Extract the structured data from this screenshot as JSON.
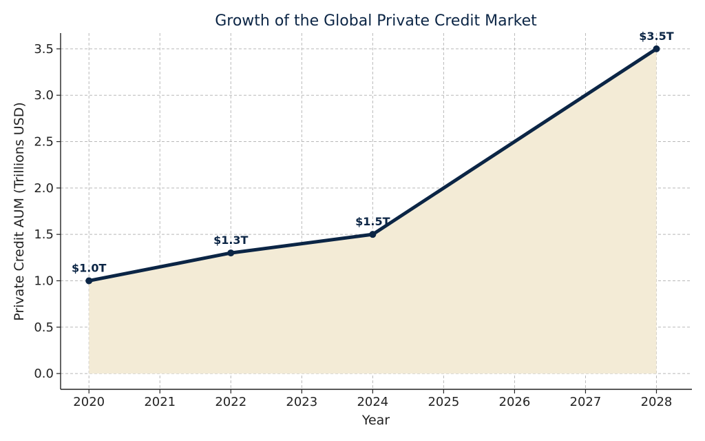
{
  "chart_data": {
    "type": "area",
    "title": "Growth of the Global Private Credit Market",
    "xlabel": "Year",
    "ylabel": "Private Credit AUM (Trillions USD)",
    "xlim": [
      2019.6,
      2028.5
    ],
    "ylim": [
      -0.17,
      3.67
    ],
    "xticks": [
      2020,
      2021,
      2022,
      2023,
      2024,
      2025,
      2026,
      2027,
      2028
    ],
    "yticks": [
      "0.0",
      "0.5",
      "1.0",
      "1.5",
      "2.0",
      "2.5",
      "3.0",
      "3.5"
    ],
    "grid": true,
    "series": [
      {
        "x": [
          2020,
          2022,
          2024,
          2028
        ],
        "y": [
          1.0,
          1.3,
          1.5,
          3.5
        ],
        "labels": [
          "$1.0T",
          "$1.3T",
          "$1.5T",
          "$3.5T"
        ]
      }
    ],
    "colors": {
      "line": "#0b2545",
      "fill": "#f3ebd6",
      "grid": "#b8b8b8"
    }
  }
}
